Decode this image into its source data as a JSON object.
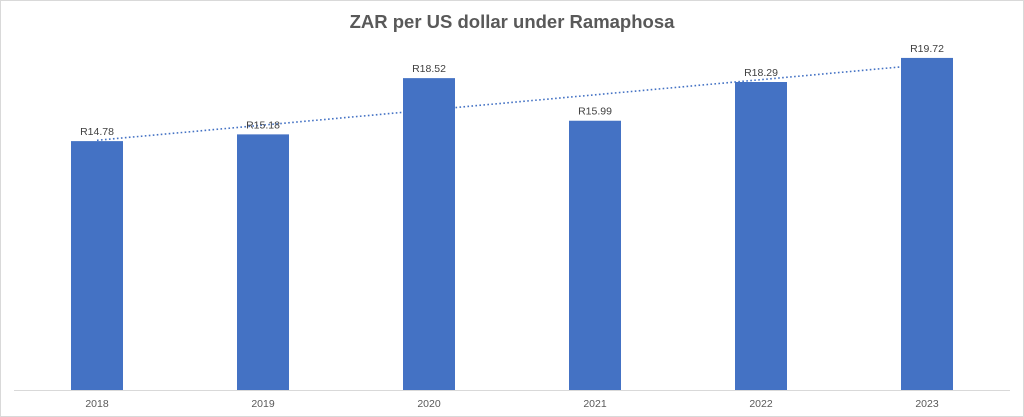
{
  "chart_data": {
    "type": "bar",
    "title": "ZAR per US dollar  under Ramaphosa",
    "categories": [
      "2018",
      "2019",
      "2020",
      "2021",
      "2022",
      "2023"
    ],
    "values": [
      14.78,
      15.18,
      18.52,
      15.99,
      18.29,
      19.72
    ],
    "data_labels": [
      "R14.78",
      "R15.18",
      "R18.52",
      "R15.99",
      "R18.29",
      "R19.72"
    ],
    "bar_color": "#4472c4",
    "trendline": {
      "type": "linear",
      "style": "dotted",
      "color": "#4472c4"
    },
    "ylim": [
      0,
      21.2
    ],
    "y_axis_visible": false,
    "grid": false
  }
}
